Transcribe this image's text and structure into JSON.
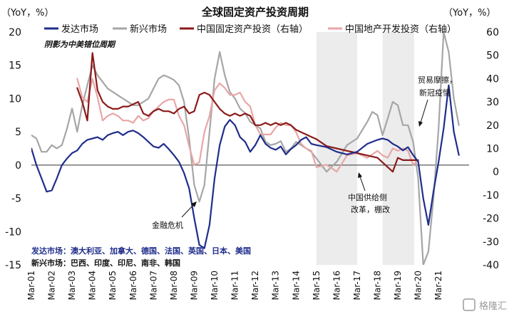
{
  "chart_data": {
    "type": "line",
    "title": "全球固定资产投资周期",
    "left_unit": "（YoY，%）",
    "right_unit": "（YoY，%）",
    "left_ylim": [
      -15,
      20
    ],
    "left_yticks": [
      -15,
      -10,
      -5,
      0,
      5,
      10,
      15,
      20
    ],
    "right_ylim": [
      -40,
      60
    ],
    "right_yticks": [
      -40,
      -30,
      -20,
      -10,
      0,
      10,
      20,
      30,
      40,
      50,
      60
    ],
    "x_start": 2001.0,
    "x_end": 2022.5,
    "x_ticks": [
      "Mar-01",
      "Mar-02",
      "Mar-03",
      "Mar-04",
      "Mar-05",
      "Mar-06",
      "Mar-07",
      "Mar-08",
      "Mar-09",
      "Mar-10",
      "Mar-11",
      "Mar-12",
      "Mar-13",
      "Mar-14",
      "Mar-15",
      "Mar-16",
      "Mar-17",
      "Mar-18",
      "Mar-19",
      "Mar-20",
      "Mar-21"
    ],
    "shaded_periods": [
      [
        2015.0,
        2017.0
      ],
      [
        2018.25,
        2019.8
      ]
    ],
    "shading_note": "阴影为中美错位周期",
    "grid": false,
    "legend_position": "top",
    "series": [
      {
        "name": "发达市场",
        "axis": "left",
        "color": "#1f2d8c",
        "x": [
          2001.0,
          2001.25,
          2001.5,
          2001.75,
          2002.0,
          2002.25,
          2002.5,
          2002.75,
          2003.0,
          2003.25,
          2003.5,
          2003.75,
          2004.0,
          2004.25,
          2004.5,
          2004.75,
          2005.0,
          2005.25,
          2005.5,
          2005.75,
          2006.0,
          2006.25,
          2006.5,
          2006.75,
          2007.0,
          2007.25,
          2007.5,
          2007.75,
          2008.0,
          2008.25,
          2008.5,
          2008.75,
          2009.0,
          2009.25,
          2009.5,
          2009.75,
          2010.0,
          2010.25,
          2010.5,
          2010.75,
          2011.0,
          2011.25,
          2011.5,
          2011.75,
          2012.0,
          2012.25,
          2012.5,
          2012.75,
          2013.0,
          2013.25,
          2013.5,
          2013.75,
          2014.0,
          2014.25,
          2014.5,
          2014.75,
          2015.0,
          2015.5,
          2016.0,
          2016.5,
          2017.0,
          2017.5,
          2018.0,
          2018.25,
          2018.5,
          2018.75,
          2019.0,
          2019.25,
          2019.5,
          2019.75,
          2020.0,
          2020.25,
          2020.5,
          2020.75,
          2021.0,
          2021.25,
          2021.5,
          2021.75,
          2022.0
        ],
        "y": [
          2.5,
          0.0,
          -2.0,
          -4.0,
          -3.8,
          -2.0,
          0.0,
          1.0,
          1.8,
          2.2,
          3.2,
          3.8,
          4.0,
          4.2,
          3.8,
          4.5,
          4.8,
          5.0,
          4.5,
          5.0,
          5.2,
          4.8,
          4.2,
          3.5,
          2.8,
          2.6,
          3.2,
          2.4,
          1.5,
          0.5,
          -1.2,
          -3.5,
          -8.0,
          -12.0,
          -12.5,
          -9.0,
          -2.0,
          3.0,
          5.8,
          6.8,
          6.0,
          4.2,
          3.5,
          2.0,
          3.0,
          4.5,
          3.2,
          2.6,
          2.3,
          2.8,
          1.6,
          2.4,
          3.0,
          3.8,
          4.2,
          3.2,
          3.0,
          2.7,
          2.0,
          1.6,
          2.0,
          3.2,
          3.8,
          4.0,
          3.8,
          3.2,
          2.8,
          2.2,
          2.7,
          1.5,
          0.5,
          -5.0,
          -9.0,
          -4.0,
          0.5,
          5.5,
          12.0,
          5.0,
          1.5
        ]
      },
      {
        "name": "新兴市场",
        "axis": "left",
        "color": "#a6a6a6",
        "x": [
          2001.0,
          2001.25,
          2001.5,
          2001.75,
          2002.0,
          2002.25,
          2002.5,
          2002.75,
          2003.0,
          2003.25,
          2003.5,
          2003.75,
          2004.0,
          2004.25,
          2004.5,
          2004.75,
          2005.0,
          2005.25,
          2005.5,
          2005.75,
          2006.0,
          2006.25,
          2006.5,
          2006.75,
          2007.0,
          2007.25,
          2007.5,
          2007.75,
          2008.0,
          2008.25,
          2008.5,
          2008.75,
          2009.0,
          2009.25,
          2009.5,
          2009.75,
          2010.0,
          2010.25,
          2010.5,
          2010.75,
          2011.0,
          2011.25,
          2011.5,
          2011.75,
          2012.0,
          2012.25,
          2012.5,
          2012.75,
          2013.0,
          2013.25,
          2013.5,
          2013.75,
          2014.0,
          2014.25,
          2014.5,
          2014.75,
          2015.0,
          2015.5,
          2016.0,
          2016.5,
          2017.0,
          2017.5,
          2017.75,
          2018.0,
          2018.25,
          2018.5,
          2018.75,
          2019.0,
          2019.25,
          2019.5,
          2019.75,
          2020.0,
          2020.25,
          2020.5,
          2020.75,
          2021.0,
          2021.25,
          2021.5,
          2021.75,
          2022.0
        ],
        "y": [
          4.5,
          4.0,
          2.0,
          2.0,
          3.0,
          2.5,
          3.0,
          5.5,
          8.5,
          5.0,
          9.0,
          12.0,
          15.0,
          13.5,
          12.5,
          11.5,
          11.0,
          10.5,
          10.0,
          9.5,
          9.0,
          9.0,
          9.5,
          10.0,
          11.5,
          13.0,
          13.5,
          13.2,
          12.8,
          12.0,
          9.5,
          4.0,
          -3.0,
          -5.5,
          -3.0,
          5.0,
          13.0,
          17.0,
          13.5,
          11.0,
          10.0,
          8.5,
          7.8,
          6.5,
          6.0,
          5.5,
          3.5,
          3.0,
          3.2,
          3.6,
          2.0,
          2.5,
          3.5,
          3.0,
          2.5,
          2.0,
          1.0,
          -1.0,
          0.5,
          3.0,
          4.0,
          6.5,
          8.0,
          7.5,
          4.5,
          7.0,
          9.5,
          9.0,
          6.0,
          6.0,
          3.5,
          -2.0,
          -15.0,
          -13.0,
          -5.0,
          5.5,
          20.0,
          17.0,
          10.0,
          6.0
        ]
      },
      {
        "name": "中国固定资产投资（右轴）",
        "axis": "right",
        "color": "#8b1a1a",
        "x": [
          2003.25,
          2003.5,
          2003.75,
          2004.0,
          2004.25,
          2004.5,
          2004.75,
          2005.0,
          2005.25,
          2005.5,
          2005.75,
          2006.0,
          2006.25,
          2006.5,
          2006.75,
          2007.0,
          2007.25,
          2007.5,
          2007.75,
          2008.0,
          2008.25,
          2008.5,
          2008.75,
          2009.0,
          2009.25,
          2009.5,
          2009.75,
          2010.0,
          2010.25,
          2010.5,
          2010.75,
          2011.0,
          2011.25,
          2011.5,
          2011.75,
          2012.0,
          2012.25,
          2012.5,
          2012.75,
          2013.0,
          2013.25,
          2013.5,
          2013.75,
          2014.0,
          2014.25,
          2014.5,
          2014.75,
          2015.0,
          2015.5,
          2016.0,
          2016.5,
          2017.0,
          2017.5,
          2018.0,
          2018.25,
          2018.5,
          2018.75,
          2019.0,
          2019.25,
          2019.5,
          2019.75,
          2020.0
        ],
        "y": [
          36,
          30,
          22,
          51,
          35,
          30,
          28,
          27,
          27,
          28,
          28,
          29,
          30,
          25,
          24,
          26,
          27,
          26,
          26,
          25,
          27,
          28,
          25,
          26,
          33,
          34,
          33,
          30,
          27,
          25,
          24,
          25,
          24,
          25,
          24,
          20,
          20,
          21,
          20,
          21,
          20,
          21,
          20,
          18,
          17,
          16,
          15,
          14,
          11,
          10,
          9,
          8,
          7,
          6,
          4,
          2,
          0,
          6,
          5,
          5,
          5,
          5
        ]
      },
      {
        "name": "中国地产开发投资（右轴）",
        "axis": "right",
        "color": "#e8a6a6",
        "x": [
          2003.25,
          2003.5,
          2003.75,
          2004.0,
          2004.25,
          2004.5,
          2004.75,
          2005.0,
          2005.25,
          2005.5,
          2005.75,
          2006.0,
          2006.25,
          2006.5,
          2006.75,
          2007.0,
          2007.25,
          2007.5,
          2007.75,
          2008.0,
          2008.25,
          2008.5,
          2008.75,
          2009.0,
          2009.25,
          2009.5,
          2009.75,
          2010.0,
          2010.25,
          2010.5,
          2010.75,
          2011.0,
          2011.25,
          2011.5,
          2011.75,
          2012.0,
          2012.25,
          2012.5,
          2012.75,
          2013.0,
          2013.25,
          2013.5,
          2013.75,
          2014.0,
          2014.25,
          2014.5,
          2014.75,
          2015.0,
          2015.5,
          2016.0,
          2016.5,
          2017.0,
          2017.5,
          2018.0,
          2018.25,
          2018.5,
          2018.75,
          2019.0,
          2019.25,
          2019.5,
          2019.75,
          2020.0
        ],
        "y": [
          40,
          32,
          30,
          40,
          32,
          22,
          24,
          25,
          24,
          22,
          22,
          21,
          24,
          22,
          23,
          26,
          28,
          30,
          31,
          31,
          24,
          20,
          11,
          3,
          4,
          17,
          24,
          35,
          38,
          36,
          33,
          33,
          34,
          30,
          28,
          20,
          16,
          16,
          16,
          19,
          21,
          20,
          20,
          17,
          12,
          10,
          9,
          2,
          3,
          0,
          7,
          8,
          6,
          9,
          7,
          6,
          10,
          9,
          10,
          9,
          3,
          5
        ]
      }
    ],
    "annotations": [
      {
        "text": "贸易摩擦，",
        "x": 2020.5,
        "y": 12.5,
        "axis": "left"
      },
      {
        "text": "新冠疫情",
        "x": 2020.5,
        "y": 10.8,
        "axis": "left"
      },
      {
        "text": "金融危机",
        "x": 2007.9,
        "y": -9.5,
        "axis": "left"
      },
      {
        "text": "中国供给侧",
        "x": 2016.4,
        "y": -5.0,
        "axis": "left"
      },
      {
        "text": "改革，棚改",
        "x": 2016.4,
        "y": -6.8,
        "axis": "left"
      }
    ],
    "footnotes": {
      "developed": "发达市场：澳大利亚、加拿大、德国、法国、英国、日本、美国",
      "emerging": "新兴市场：巴西、印度、印尼、南非、韩国"
    },
    "watermark": "格隆汇"
  }
}
